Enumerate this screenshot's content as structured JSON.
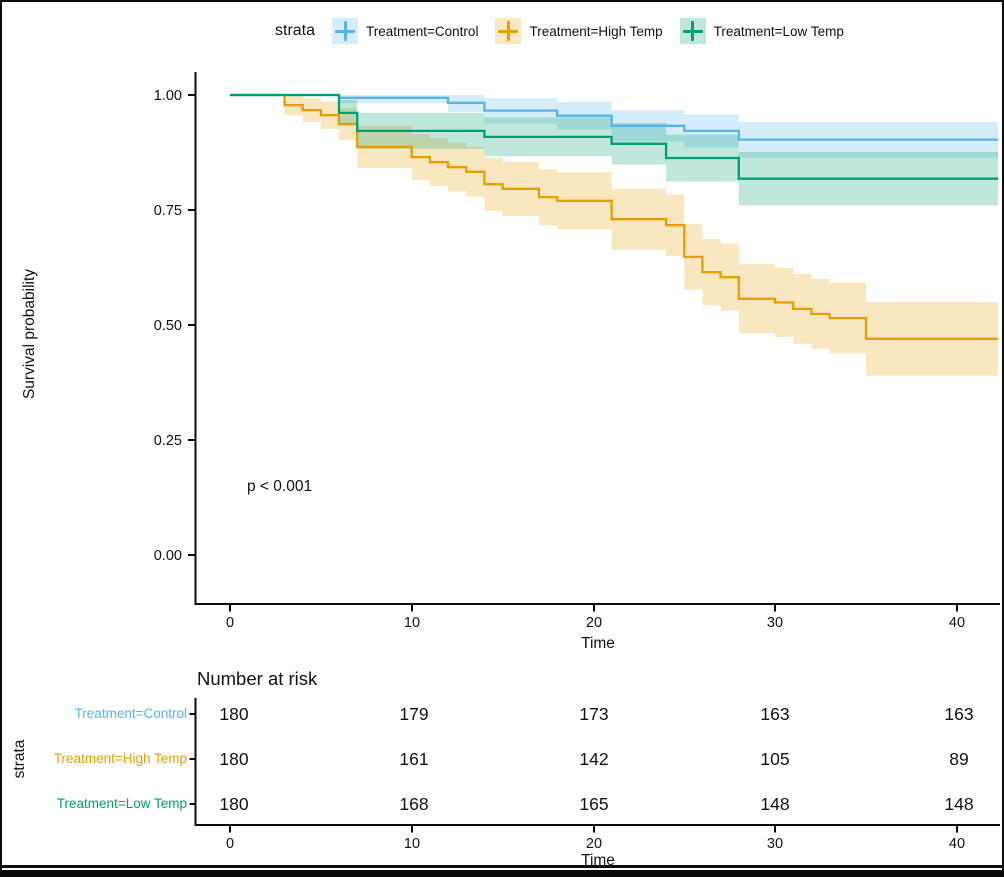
{
  "legend": {
    "title": "strata",
    "items": [
      {
        "label": "Treatment=Control",
        "color": "#56B4E9"
      },
      {
        "label": "Treatment=High Temp",
        "color": "#E69F00"
      },
      {
        "label": "Treatment=Low Temp",
        "color": "#009E73"
      }
    ]
  },
  "annotation": {
    "p_value": "p < 0.001"
  },
  "chart_data": {
    "type": "line",
    "subtype": "kaplan-meier-step",
    "title": "",
    "xlabel": "Time",
    "ylabel": "Survival probability",
    "xlim": [
      0,
      42
    ],
    "ylim": [
      0,
      1
    ],
    "x_ticks": [
      0,
      10,
      20,
      30,
      40
    ],
    "y_ticks": [
      "1.00",
      "0.75",
      "0.50",
      "0.25",
      "0.00"
    ],
    "grid": "off",
    "legend_position": "top",
    "band_opacity": 0.25,
    "series": [
      {
        "name": "Treatment=Control",
        "color": "#56B4E9",
        "steps": [
          [
            0,
            1.0,
            1.0,
            1.0
          ],
          [
            6,
            0.994,
            0.982,
            1.0
          ],
          [
            12,
            0.983,
            0.963,
            1.0
          ],
          [
            14,
            0.966,
            0.938,
            0.993
          ],
          [
            18,
            0.955,
            0.925,
            0.985
          ],
          [
            21,
            0.933,
            0.899,
            0.967
          ],
          [
            25,
            0.922,
            0.886,
            0.958
          ],
          [
            28,
            0.903,
            0.864,
            0.942
          ]
        ],
        "end_time": 42
      },
      {
        "name": "Treatment=High Temp",
        "color": "#E69F00",
        "steps": [
          [
            0,
            1.0,
            1.0,
            1.0
          ],
          [
            3,
            0.978,
            0.956,
            1.0
          ],
          [
            4,
            0.967,
            0.941,
            0.993
          ],
          [
            5,
            0.956,
            0.926,
            0.986
          ],
          [
            6,
            0.937,
            0.902,
            0.972
          ],
          [
            7,
            0.887,
            0.841,
            0.933
          ],
          [
            10,
            0.865,
            0.815,
            0.915
          ],
          [
            11,
            0.854,
            0.802,
            0.906
          ],
          [
            12,
            0.843,
            0.79,
            0.896
          ],
          [
            13,
            0.833,
            0.779,
            0.887
          ],
          [
            14,
            0.806,
            0.748,
            0.864
          ],
          [
            15,
            0.796,
            0.737,
            0.855
          ],
          [
            17,
            0.778,
            0.717,
            0.839
          ],
          [
            18,
            0.77,
            0.708,
            0.832
          ],
          [
            21,
            0.73,
            0.664,
            0.796
          ],
          [
            24,
            0.717,
            0.65,
            0.784
          ],
          [
            25,
            0.648,
            0.577,
            0.719
          ],
          [
            26,
            0.615,
            0.543,
            0.687
          ],
          [
            27,
            0.604,
            0.531,
            0.677
          ],
          [
            28,
            0.557,
            0.482,
            0.632
          ],
          [
            30,
            0.549,
            0.474,
            0.624
          ],
          [
            31,
            0.535,
            0.459,
            0.611
          ],
          [
            32,
            0.524,
            0.448,
            0.6
          ],
          [
            33,
            0.515,
            0.438,
            0.592
          ],
          [
            35,
            0.47,
            0.39,
            0.55
          ]
        ],
        "end_time": 42
      },
      {
        "name": "Treatment=Low Temp",
        "color": "#009E73",
        "steps": [
          [
            0,
            1.0,
            1.0,
            1.0
          ],
          [
            6,
            0.961,
            0.933,
            0.989
          ],
          [
            7,
            0.922,
            0.883,
            0.961
          ],
          [
            14,
            0.909,
            0.867,
            0.951
          ],
          [
            21,
            0.894,
            0.849,
            0.939
          ],
          [
            24,
            0.863,
            0.812,
            0.914
          ],
          [
            28,
            0.818,
            0.76,
            0.876
          ]
        ],
        "end_time": 42
      }
    ]
  },
  "risk_table": {
    "title": "Number at risk",
    "axis_label": "strata",
    "xlabel": "Time",
    "x_ticks": [
      0,
      10,
      20,
      30,
      40
    ],
    "rows": [
      {
        "label": "Treatment=Control",
        "color": "#56B4E9",
        "counts": [
          180,
          179,
          173,
          163,
          163
        ]
      },
      {
        "label": "Treatment=High Temp",
        "color": "#E69F00",
        "counts": [
          180,
          161,
          142,
          105,
          89
        ]
      },
      {
        "label": "Treatment=Low Temp",
        "color": "#009E73",
        "counts": [
          180,
          168,
          165,
          148,
          148
        ]
      }
    ]
  }
}
